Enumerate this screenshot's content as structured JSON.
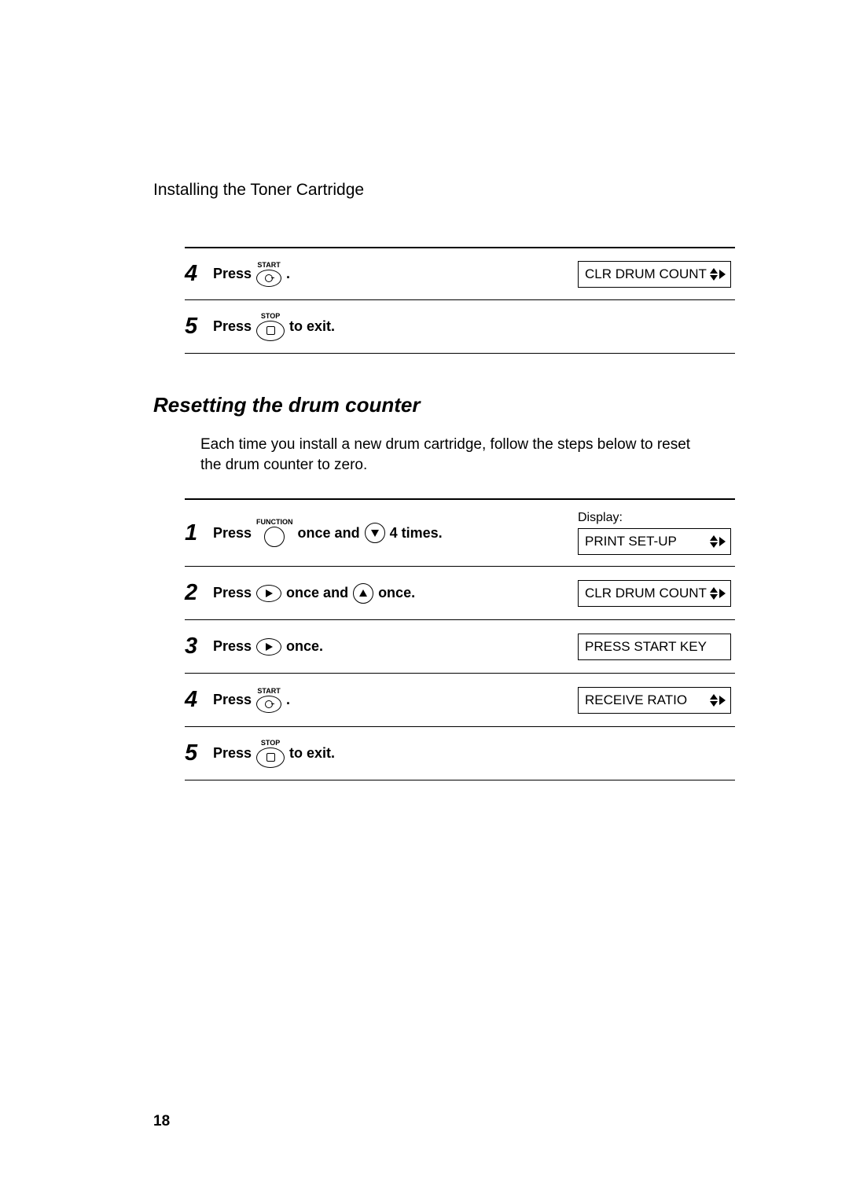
{
  "page_header": "Installing the Toner Cartridge",
  "page_number": "18",
  "section_heading": "Resetting the drum counter",
  "intro_text": "Each time you install a new drum cartridge, follow the steps below to reset the drum counter to zero.",
  "top_steps": [
    {
      "num": "4",
      "parts": [
        {
          "t": "text",
          "v": "Press"
        },
        {
          "t": "btn",
          "label": "START",
          "shape": "oval",
          "glyph": "start"
        },
        {
          "t": "text",
          "v": "."
        }
      ],
      "display": {
        "text": "CLR DRUM COUNT",
        "arrows": "updown-right"
      }
    },
    {
      "num": "5",
      "parts": [
        {
          "t": "text",
          "v": "Press"
        },
        {
          "t": "btn",
          "label": "STOP",
          "shape": "oval-big",
          "glyph": "stop"
        },
        {
          "t": "text",
          "v": " to exit."
        }
      ],
      "display": null
    }
  ],
  "main_steps": [
    {
      "num": "1",
      "parts": [
        {
          "t": "text",
          "v": "Press"
        },
        {
          "t": "btn",
          "label": "FUNCTION",
          "shape": "circle",
          "glyph": "none"
        },
        {
          "t": "text",
          "v": " once and "
        },
        {
          "t": "btn",
          "label": "",
          "shape": "circle",
          "glyph": "down"
        },
        {
          "t": "text",
          "v": " 4 times."
        }
      ],
      "display_label": "Display:",
      "display": {
        "text": "PRINT SET-UP",
        "arrows": "updown-right"
      }
    },
    {
      "num": "2",
      "parts": [
        {
          "t": "text",
          "v": "Press"
        },
        {
          "t": "btn",
          "label": "",
          "shape": "oval",
          "glyph": "right"
        },
        {
          "t": "text",
          "v": " once and "
        },
        {
          "t": "btn",
          "label": "",
          "shape": "circle",
          "glyph": "up"
        },
        {
          "t": "text",
          "v": " once."
        }
      ],
      "display": {
        "text": "CLR DRUM COUNT",
        "arrows": "updown-right"
      }
    },
    {
      "num": "3",
      "parts": [
        {
          "t": "text",
          "v": "Press"
        },
        {
          "t": "btn",
          "label": "",
          "shape": "oval",
          "glyph": "right"
        },
        {
          "t": "text",
          "v": " once."
        }
      ],
      "display": {
        "text": "PRESS START KEY",
        "arrows": "none"
      }
    },
    {
      "num": "4",
      "parts": [
        {
          "t": "text",
          "v": "Press"
        },
        {
          "t": "btn",
          "label": "START",
          "shape": "oval",
          "glyph": "start"
        },
        {
          "t": "text",
          "v": "."
        }
      ],
      "display": {
        "text": "RECEIVE RATIO",
        "arrows": "updown-right"
      }
    },
    {
      "num": "5",
      "parts": [
        {
          "t": "text",
          "v": "Press"
        },
        {
          "t": "btn",
          "label": "STOP",
          "shape": "oval-big",
          "glyph": "stop"
        },
        {
          "t": "text",
          "v": " to exit."
        }
      ],
      "display": null
    }
  ]
}
